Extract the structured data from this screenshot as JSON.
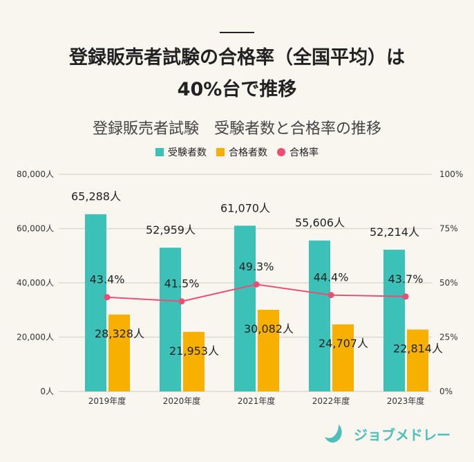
{
  "header": {
    "title_line1": "登録販売者試験の合格率（全国平均）は",
    "title_line2": "40%台で推移"
  },
  "brand": {
    "name": "ジョブメドレー"
  },
  "chart_data": {
    "type": "bar+line",
    "title": "登録販売者試験　受験者数と合格率の推移",
    "categories": [
      "2019年度",
      "2020年度",
      "2021年度",
      "2022年度",
      "2023年度"
    ],
    "series": [
      {
        "name": "受験者数",
        "type": "bar",
        "axis": "left",
        "color": "#3cc1b9",
        "values": [
          65288,
          52959,
          61070,
          55606,
          52214
        ],
        "labels": [
          "65,288人",
          "52,959人",
          "61,070人",
          "55,606人",
          "52,214人"
        ]
      },
      {
        "name": "合格者数",
        "type": "bar",
        "axis": "left",
        "color": "#f8b000",
        "values": [
          28328,
          21953,
          30082,
          24707,
          22814
        ],
        "labels": [
          "28,328人",
          "21,953人",
          "30,082人",
          "24,707人",
          "22,814人"
        ]
      },
      {
        "name": "合格率",
        "type": "line",
        "axis": "right",
        "color": "#ee4d73",
        "values": [
          43.4,
          41.5,
          49.3,
          44.4,
          43.7
        ],
        "labels": [
          "43.4%",
          "41.5%",
          "49.3%",
          "44.4%",
          "43.7%"
        ]
      }
    ],
    "left_axis": {
      "ylim": [
        0,
        80000
      ],
      "ticks": [
        0,
        20000,
        40000,
        60000,
        80000
      ],
      "tick_labels": [
        "0人",
        "20,000人",
        "40,000人",
        "60,000人",
        "80,000人"
      ]
    },
    "right_axis": {
      "ylim": [
        0,
        100
      ],
      "ticks": [
        0,
        25,
        50,
        75,
        100
      ],
      "tick_labels": [
        "0%",
        "25%",
        "50%",
        "75%",
        "100%"
      ]
    },
    "grid": true,
    "legend": "top-center"
  }
}
